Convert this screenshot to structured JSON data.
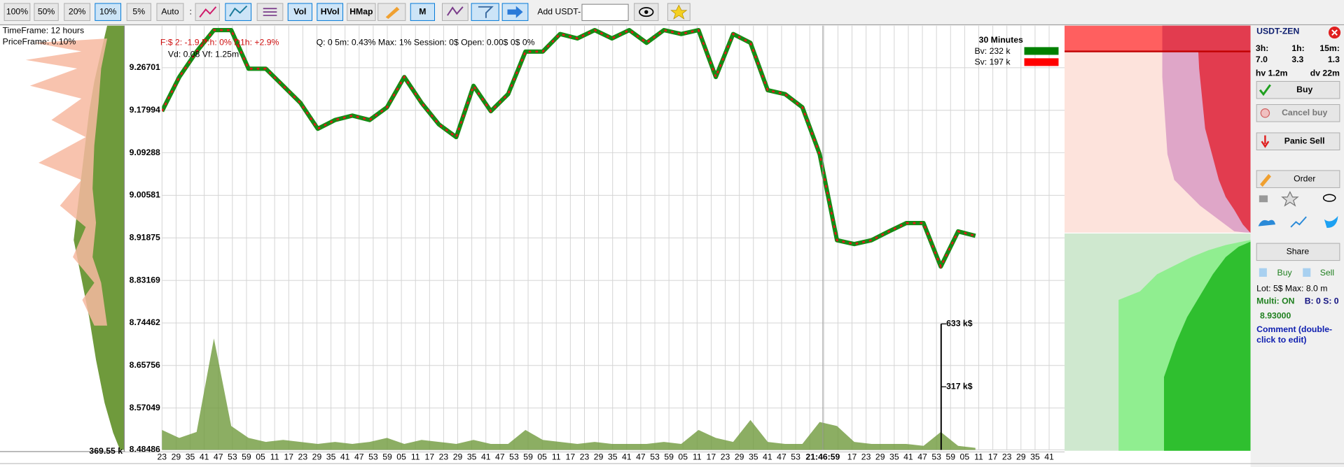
{
  "toolbar": {
    "zoom_buttons": [
      "100%",
      "50%",
      "20%",
      "10%",
      "5%",
      "Auto"
    ],
    "active_zoom_index": 3,
    "view_buttons": [
      "Vol",
      "HVol",
      "HMap"
    ],
    "mode_button": "M",
    "add_label": "Add USDT-"
  },
  "left_panel": {
    "timeframe": "TimeFrame: 12 hours",
    "priceframe": "PriceFrame: 0.10%",
    "volume_total": "369.55 k"
  },
  "info": {
    "line1_red": "F:$  2:  -1.9   P:h: 0%   D1h: +2.9%",
    "line1_black": "Q: 0   5m: 0.43%   Max: 1%   Session: 0$   Open: 0.00$   0$   0%",
    "line2": "Vd: 0.08 Vf: 1.25m"
  },
  "legend": {
    "title": "30 Minutes",
    "items": [
      {
        "text": "Bv: 232 k",
        "color": "#008000"
      },
      {
        "text": "Sv: 197 k",
        "color": "#ff0000"
      }
    ]
  },
  "chart_data": {
    "type": "line",
    "color": "#148c14",
    "color2": "#e8141a",
    "ylim": [
      8.48486,
      9.353
    ],
    "yticks": [
      9.26701,
      9.17994,
      9.09288,
      9.00581,
      8.91875,
      8.83169,
      8.74462,
      8.65756,
      8.57049,
      8.48486
    ],
    "grid": true,
    "values": [
      9.178,
      9.248,
      9.3,
      9.344,
      9.344,
      9.265,
      9.265,
      9.23,
      9.195,
      9.142,
      9.16,
      9.169,
      9.16,
      9.186,
      9.248,
      9.195,
      9.151,
      9.125,
      9.23,
      9.178,
      9.213,
      9.3,
      9.3,
      9.336,
      9.327,
      9.344,
      9.327,
      9.344,
      9.318,
      9.344,
      9.336,
      9.344,
      9.248,
      9.336,
      9.318,
      9.221,
      9.213,
      9.186,
      9.09,
      8.914,
      8.906,
      8.914,
      8.932,
      8.949,
      8.949,
      8.86,
      8.932,
      8.923
    ],
    "time_labels": [
      "23",
      "29",
      "35",
      "41",
      "47",
      "53",
      "59",
      "05",
      "11",
      "17",
      "23",
      "29",
      "35",
      "41",
      "47",
      "53",
      "59",
      "05",
      "11",
      "17",
      "23",
      "29",
      "35",
      "41",
      "47",
      "53",
      "59",
      "05",
      "11",
      "17",
      "23",
      "29",
      "35",
      "41",
      "47",
      "53",
      "59",
      "05",
      "11",
      "17",
      "23",
      "29",
      "35",
      "41",
      "47",
      "53",
      "59",
      "05",
      "11",
      "17",
      "23",
      "29",
      "35",
      "41",
      "47",
      "53",
      "59",
      "05",
      "11",
      "17",
      "23",
      "29",
      "35",
      "41"
    ],
    "crosshair_time": "21:46:59",
    "volume": {
      "color": "#6f9a3c",
      "ylim": [
        0,
        633
      ],
      "yticks": [
        {
          "value": 633,
          "label": "633 k$"
        },
        {
          "value": 317,
          "label": "317 k$"
        }
      ],
      "values": [
        100,
        60,
        90,
        560,
        120,
        60,
        40,
        50,
        40,
        30,
        40,
        30,
        40,
        60,
        30,
        50,
        40,
        30,
        50,
        30,
        30,
        100,
        50,
        40,
        30,
        40,
        30,
        30,
        30,
        40,
        30,
        100,
        60,
        40,
        150,
        40,
        30,
        30,
        140,
        120,
        40,
        30,
        30,
        30,
        20,
        90,
        20,
        10
      ]
    }
  },
  "side_panel": {
    "symbol": "USDT-ZEN",
    "periods": [
      "3h:",
      "1h:",
      "15m:"
    ],
    "period_values": [
      "7.0",
      "3.3",
      "1.3"
    ],
    "hv": "hv 1.2m",
    "dv": "dv 22m",
    "buy": "Buy",
    "cancel_buy": "Cancel buy",
    "panic_sell": "Panic Sell",
    "order": "Order",
    "share": "Share",
    "mini_buy": "Buy",
    "mini_sell": "Sell",
    "lot": "Lot: 5$  Max: 8.0 m",
    "multi": "Multi: ON",
    "bs": "B: 0 S: 0",
    "price": "8.93000",
    "comment1": "Comment (double-",
    "comment2": "click to edit)"
  }
}
